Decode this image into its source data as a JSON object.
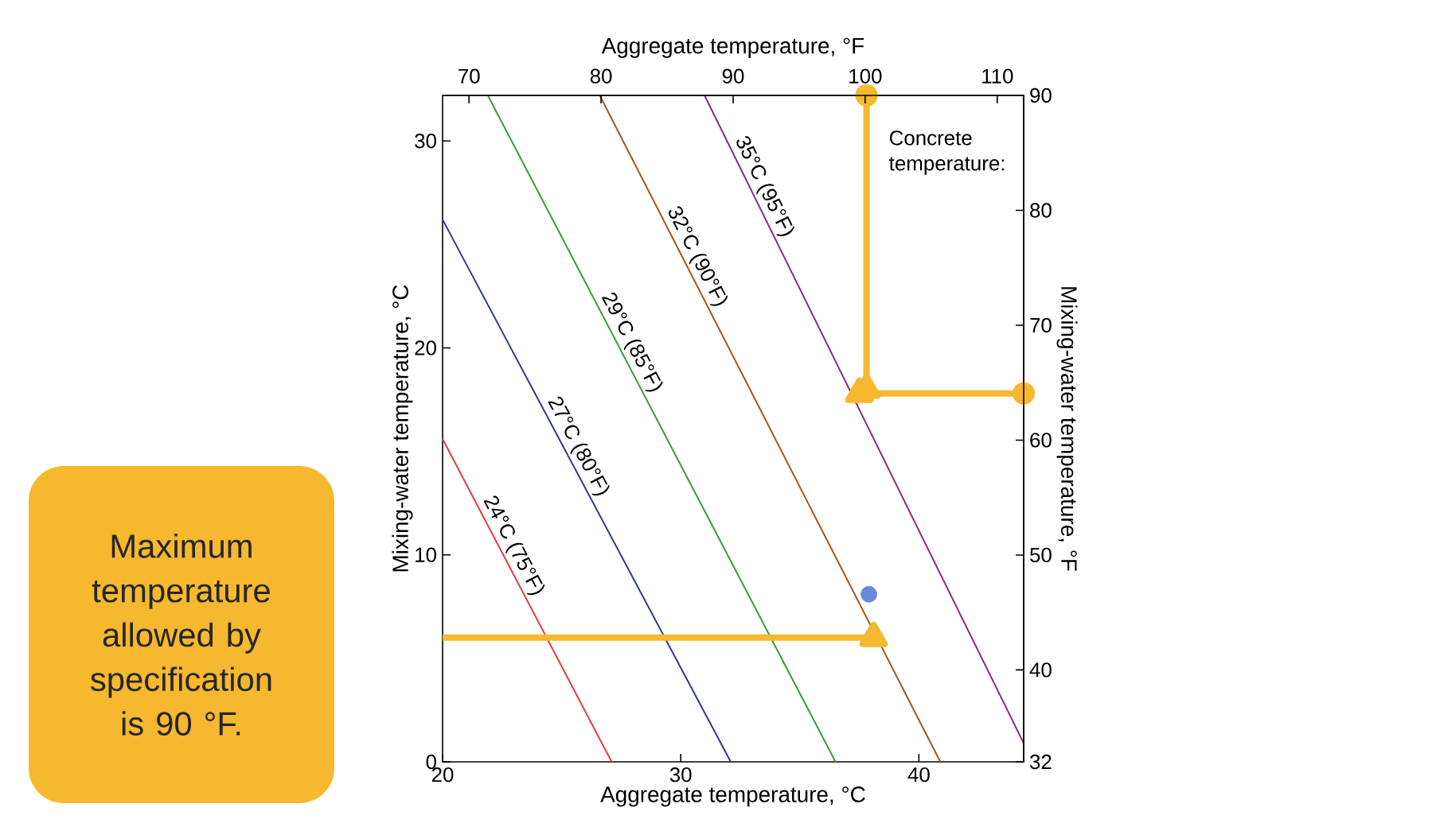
{
  "chart_data": {
    "type": "line",
    "xlabel": "Aggregate temperature, °C",
    "x2label": "Aggregate temperature, °F",
    "ylabel": "Mixing-water temperature, °C",
    "y2label": "Mixing-water temperature, °F",
    "xlim": [
      20,
      44.4
    ],
    "xticks": [
      20,
      30,
      40
    ],
    "x2lim": [
      68,
      112
    ],
    "x2ticks": [
      70,
      80,
      90,
      100,
      110
    ],
    "ylim": [
      0,
      32.2
    ],
    "yticks": [
      0,
      10,
      20,
      30
    ],
    "y2lim": [
      32,
      90
    ],
    "y2ticks": [
      32,
      40,
      50,
      60,
      70,
      80,
      90
    ],
    "series": [
      {
        "name": "24°C (75°F)",
        "color": "#e8383d",
        "x": [
          20,
          27.1
        ],
        "values": [
          15.6,
          0
        ]
      },
      {
        "name": "27°C (80°F)",
        "color": "#2e3a87",
        "x": [
          20,
          32.1
        ],
        "values": [
          26.2,
          0
        ]
      },
      {
        "name": "29°C (85°F)",
        "color": "#3a9a3a",
        "x": [
          21.9,
          36.5
        ],
        "values": [
          32.2,
          0
        ]
      },
      {
        "name": "32°C (90°F)",
        "color": "#a0561e",
        "x": [
          26.6,
          40.9
        ],
        "values": [
          32.2,
          0
        ]
      },
      {
        "name": "35°C (95°F)",
        "color": "#8b2a7f",
        "x": [
          31.0,
          44.4
        ],
        "values": [
          32.2,
          0.9
        ]
      },
      {
        "type": "scatter",
        "color": "#6a8ad8",
        "x": [
          37.9
        ],
        "values": [
          8.1
        ]
      },
      {
        "color": "#f5b82e",
        "marker": "circle",
        "x": [
          37.8,
          37.8
        ],
        "values": [
          32.2,
          18.0
        ]
      },
      {
        "color": "#f5b82e",
        "marker": "circle",
        "x": [
          44.4,
          37.5
        ],
        "values": [
          17.8,
          17.8
        ]
      },
      {
        "color": "#f5b82e",
        "x": [
          20,
          38.1
        ],
        "values": [
          6.0,
          6.0
        ]
      }
    ],
    "annotations": [
      "Concrete temperature:",
      "Maximum temperature allowed by specification is 90 °F."
    ]
  }
}
